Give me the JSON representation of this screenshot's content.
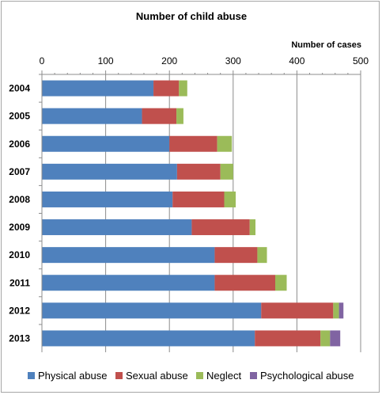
{
  "chart_data": {
    "type": "bar",
    "orientation": "horizontal",
    "stacked": true,
    "title": "Number of child abuse",
    "xlabel": "Number of cases",
    "ylabel": "",
    "xlim": [
      0,
      500
    ],
    "x_ticks": [
      0,
      100,
      200,
      300,
      400,
      500
    ],
    "x_tick_labels": [
      "0",
      "100",
      "200",
      "300",
      "400",
      "500"
    ],
    "axis_position": "top",
    "grid": true,
    "legend_position": "bottom",
    "categories": [
      "2004",
      "2005",
      "2006",
      "2007",
      "2008",
      "2009",
      "2010",
      "2011",
      "2012",
      "2013"
    ],
    "series": [
      {
        "name": "Physical abuse",
        "color": "#4f81bd",
        "values": [
          175,
          157,
          200,
          212,
          205,
          235,
          271,
          271,
          344,
          334
        ]
      },
      {
        "name": "Sexual abuse",
        "color": "#c0504d",
        "values": [
          40,
          54,
          75,
          68,
          81,
          91,
          67,
          95,
          113,
          103
        ]
      },
      {
        "name": "Neglect",
        "color": "#9bbb59",
        "values": [
          13,
          11,
          23,
          20,
          18,
          9,
          15,
          18,
          9,
          15
        ]
      },
      {
        "name": "Psychological abuse",
        "color": "#8064a2",
        "values": [
          0,
          0,
          0,
          0,
          0,
          0,
          0,
          0,
          7,
          16
        ]
      }
    ]
  }
}
